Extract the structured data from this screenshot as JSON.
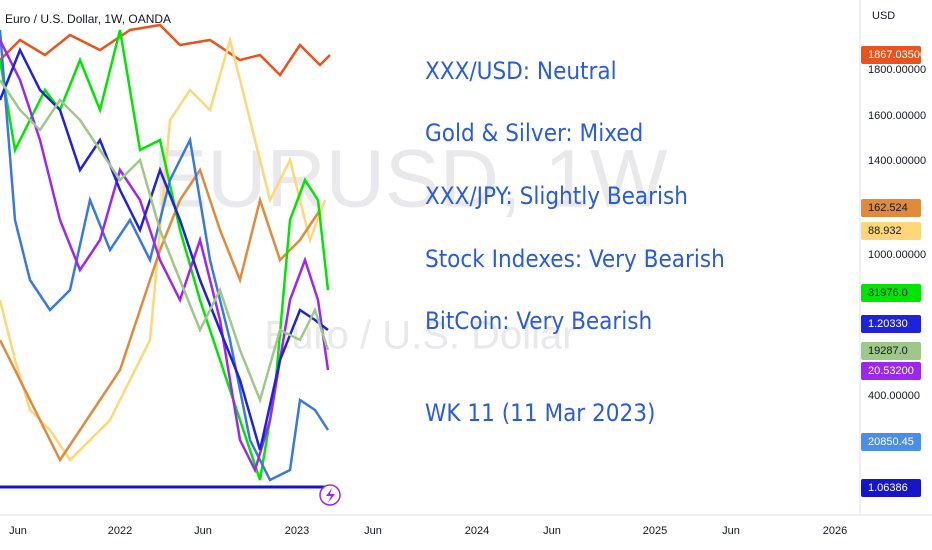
{
  "header": {
    "title": "Euro / U.S. Dollar, 1W, OANDA"
  },
  "watermark": {
    "symbol": "EURUSD, 1W",
    "description": "Euro / U.S. Dollar"
  },
  "annotations": [
    "XXX/USD: Neutral",
    "Gold & Silver: Mixed",
    "XXX/JPY: Slightly Bearish",
    "Stock Indexes:  Very Bearish",
    "BitCoin: Very Bearish",
    "WK 11 (11 Mar 2023)"
  ],
  "price_scale": {
    "currency": "USD",
    "ticks": [
      "1800.00000",
      "1600.00000",
      "1400.00000",
      "1000.00000",
      "400.00000"
    ],
    "badges": [
      "1867.03500",
      "162.524",
      "88.932",
      "31976.0",
      "1.20330",
      "19287.0",
      "20.53200",
      "20850.45",
      "1.06386"
    ]
  },
  "time_axis": [
    "Jun",
    "2022",
    "Jun",
    "2023",
    "Jun",
    "2024",
    "Jun",
    "2025",
    "Jun",
    "2026"
  ]
}
